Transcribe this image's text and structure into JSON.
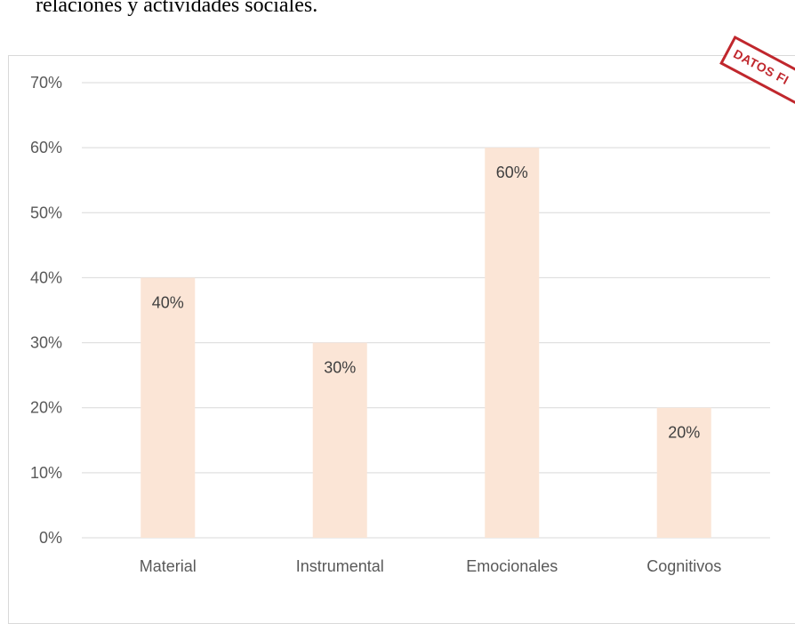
{
  "caption": "relaciones y actividades sociales.",
  "stamp_text": "DATOS FI",
  "colors": {
    "bar": "#fbe5d6",
    "grid": "#d9d9d9",
    "text": "#595959",
    "label": "#404040",
    "stamp": "#c0272d"
  },
  "chart_data": {
    "type": "bar",
    "categories": [
      "Material",
      "Instrumental",
      "Emocionales",
      "Cognitivos"
    ],
    "values": [
      0.4,
      0.3,
      0.6,
      0.2
    ],
    "data_labels": [
      "40%",
      "30%",
      "60%",
      "20%"
    ],
    "yticks": [
      "0%",
      "10%",
      "20%",
      "30%",
      "40%",
      "50%",
      "60%",
      "70%"
    ],
    "ylim": [
      0,
      0.7
    ],
    "grid": true,
    "legend": "none"
  }
}
